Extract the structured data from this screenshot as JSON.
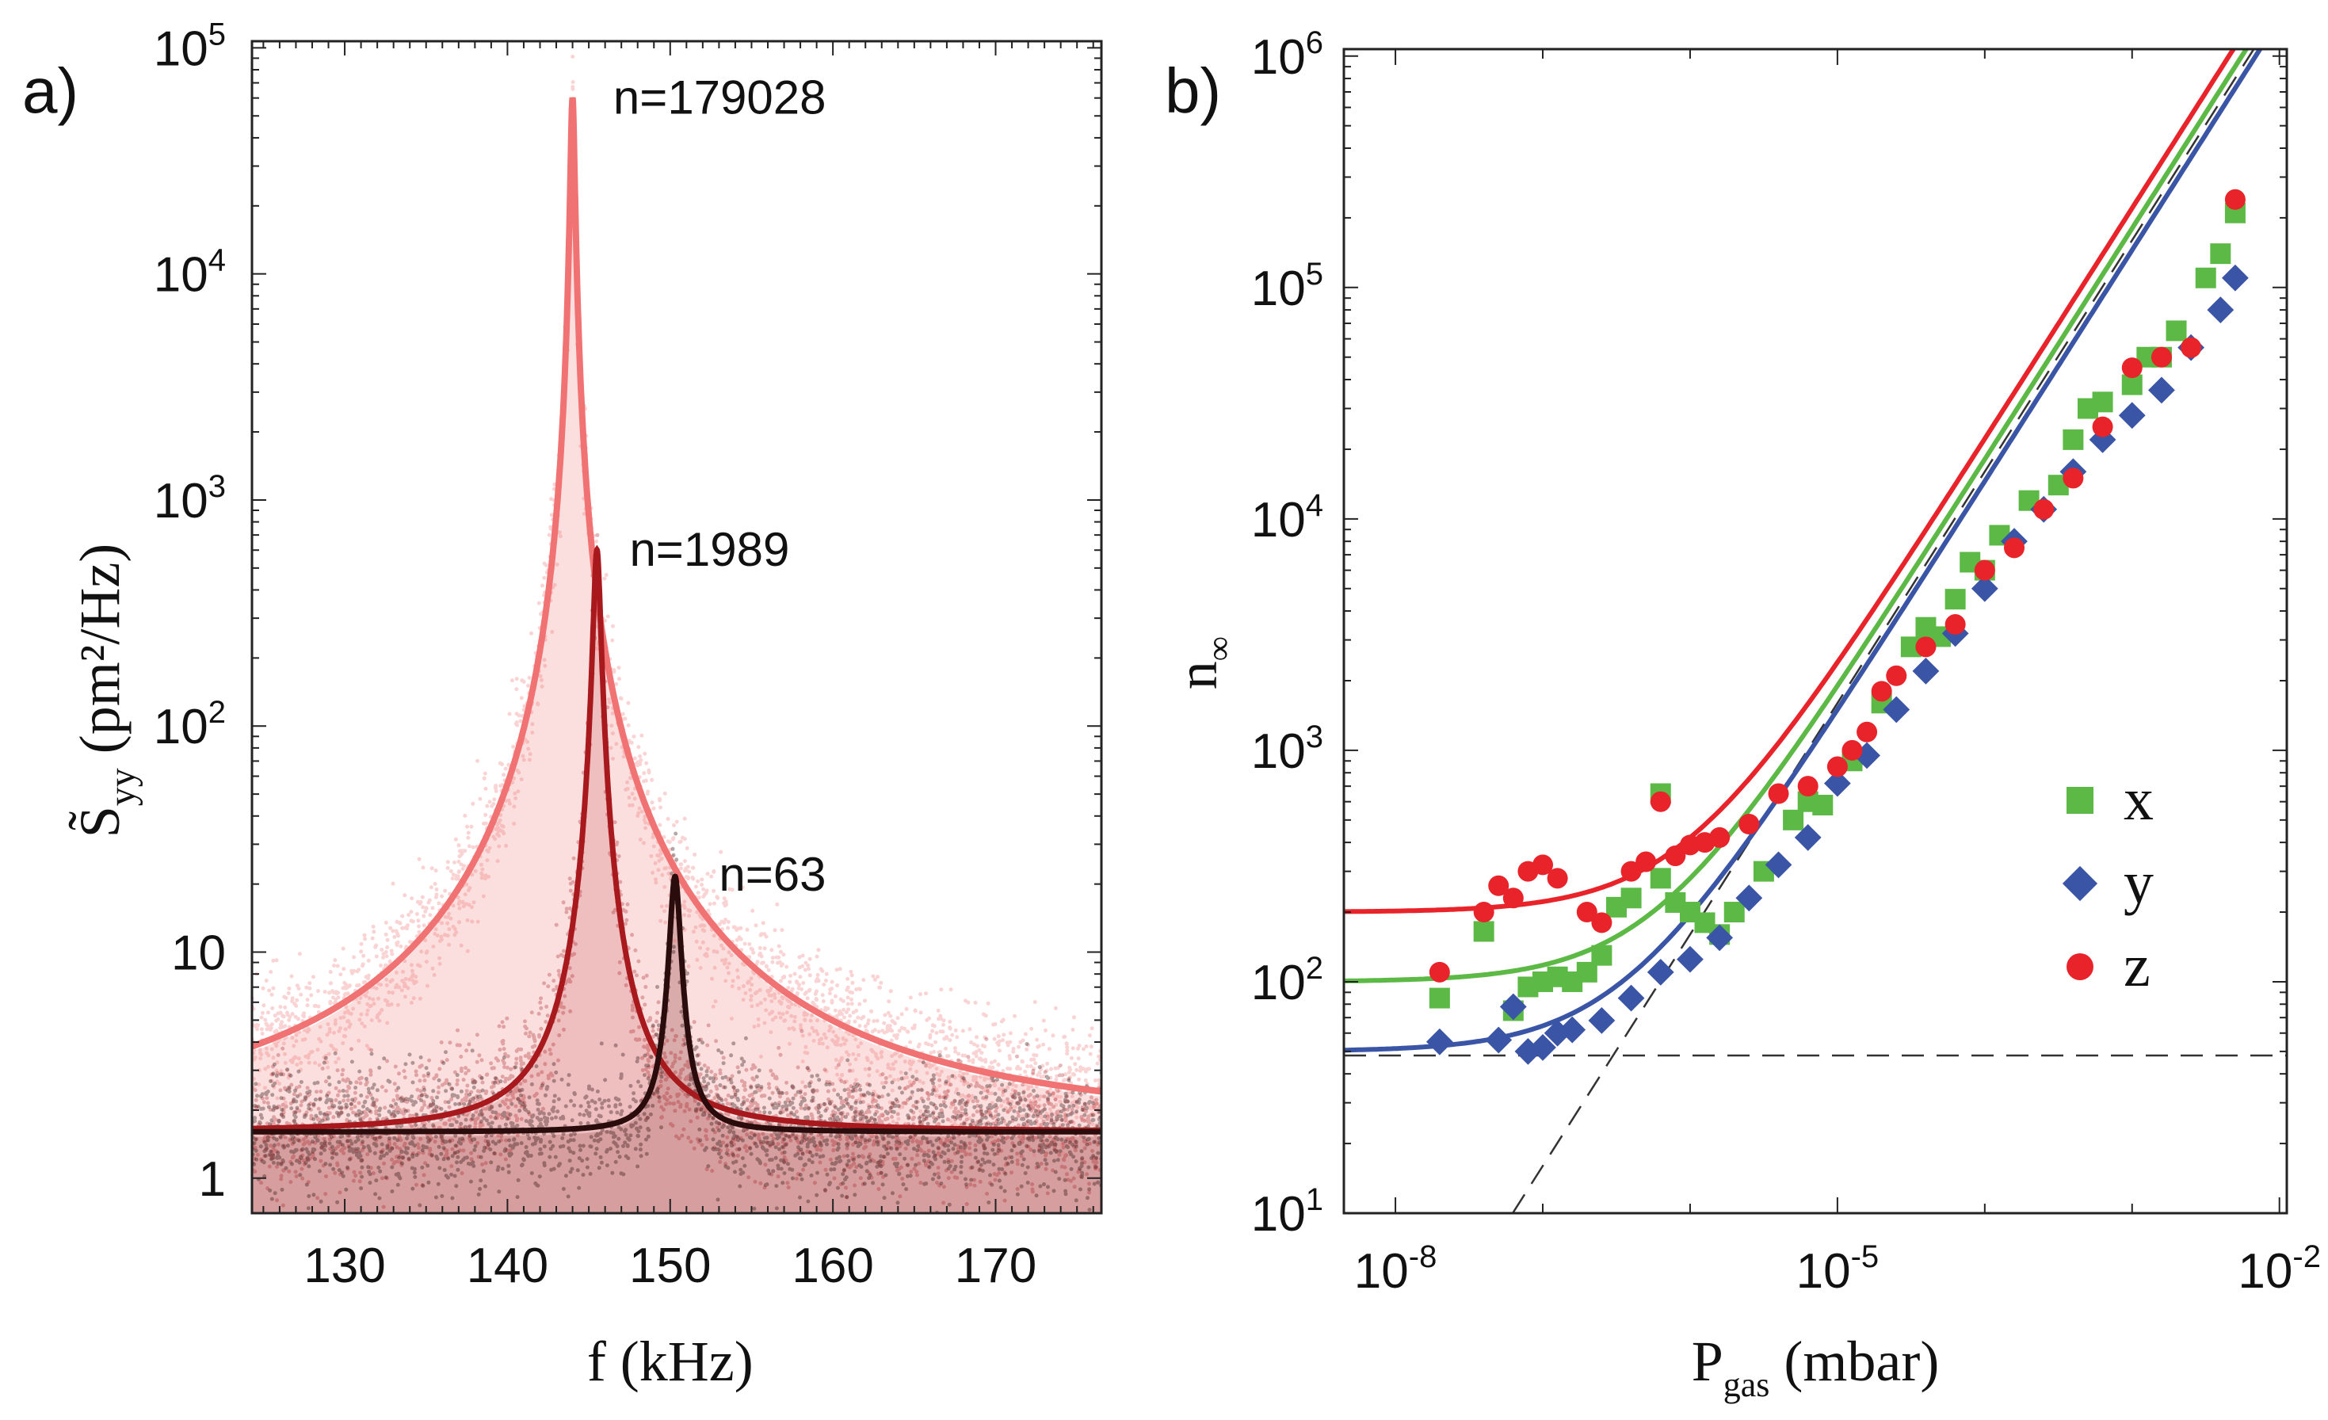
{
  "chart_data": [
    {
      "panel_label": "a)",
      "type": "line",
      "title": "",
      "xlabel": "f (kHz)",
      "ylabel_main": "S",
      "ylabel_sub": "yy",
      "ylabel_unit": "(pm²/Hz)",
      "xscale": "linear",
      "yscale": "log",
      "xlim": [
        124.3,
        176.5
      ],
      "ylim": [
        0.7,
        107000
      ],
      "xticks": [
        130,
        140,
        150,
        160,
        170
      ],
      "xtick_labels": [
        "130",
        "140",
        "150",
        "160",
        "170"
      ],
      "yticks": [
        1,
        10,
        100,
        1000,
        10000,
        100000
      ],
      "ytick_labels": [
        {
          "base": "1",
          "exp": ""
        },
        {
          "base": "10",
          "exp": ""
        },
        {
          "base": "10",
          "exp": "2"
        },
        {
          "base": "10",
          "exp": "3"
        },
        {
          "base": "10",
          "exp": "4"
        },
        {
          "base": "10",
          "exp": "5"
        }
      ],
      "series": [
        {
          "name": "n=179028",
          "center_khz": 144.0,
          "peak": 60000,
          "background": 1.6,
          "half_width_khz": 0.12,
          "color": "#f07272",
          "fill": "#fbdcdc",
          "label_pos": {
            "f": 146.5,
            "S": 60000
          }
        },
        {
          "name": "n=1989",
          "center_khz": 145.5,
          "peak": 600,
          "background": 1.6,
          "half_width_khz": 0.21,
          "color": "#a8191e",
          "fill": "#e8a9a9",
          "label_pos": {
            "f": 147.5,
            "S": 600
          }
        },
        {
          "name": "n=63",
          "center_khz": 150.3,
          "peak": 20,
          "background": 1.6,
          "half_width_khz": 0.32,
          "color": "#2a0c0c",
          "fill": "#c48989",
          "label_pos": {
            "f": 153.0,
            "S": 22
          }
        }
      ]
    },
    {
      "panel_label": "b)",
      "type": "scatter",
      "title": "",
      "xlabel_main": "P",
      "xlabel_sub": "gas",
      "xlabel_unit": "(mbar)",
      "ylabel_main": "n",
      "ylabel_sub": "∞",
      "xscale": "log",
      "yscale": "log",
      "xlim_log10": [
        -8.35,
        -1.95
      ],
      "ylim_log10": [
        1,
        6.03
      ],
      "xticks_log10": [
        -8,
        -5,
        -2
      ],
      "xtick_labels": [
        {
          "base": "10",
          "exp": "-8"
        },
        {
          "base": "10",
          "exp": "-5"
        },
        {
          "base": "10",
          "exp": "-2"
        }
      ],
      "yticks_log10": [
        1,
        2,
        3,
        4,
        5,
        6
      ],
      "ytick_labels": [
        {
          "base": "10",
          "exp": "1"
        },
        {
          "base": "10",
          "exp": "2"
        },
        {
          "base": "10",
          "exp": "3"
        },
        {
          "base": "10",
          "exp": "4"
        },
        {
          "base": "10",
          "exp": "5"
        },
        {
          "base": "10",
          "exp": "6"
        }
      ],
      "legend": {
        "placement": "right-middle",
        "entries": [
          "x",
          "y",
          "z"
        ]
      },
      "reference_lines": {
        "horizontal_n": 48,
        "linear_coefficient": 160000000.0
      },
      "series": [
        {
          "name": "x",
          "marker": "square",
          "color": "#5cb946",
          "fit_n0": 100,
          "fit_k": 180000000.0,
          "points_log10P_n": [
            [
              -7.7,
              85
            ],
            [
              -7.4,
              165
            ],
            [
              -7.2,
              75
            ],
            [
              -7.1,
              95
            ],
            [
              -7.0,
              100
            ],
            [
              -6.9,
              105
            ],
            [
              -6.8,
              100
            ],
            [
              -6.7,
              110
            ],
            [
              -6.6,
              130
            ],
            [
              -6.5,
              210
            ],
            [
              -6.4,
              230
            ],
            [
              -6.2,
              650
            ],
            [
              -6.2,
              280
            ],
            [
              -6.1,
              220
            ],
            [
              -6.0,
              200
            ],
            [
              -5.9,
              180
            ],
            [
              -5.8,
              160
            ],
            [
              -5.7,
              200
            ],
            [
              -5.5,
              300
            ],
            [
              -5.3,
              500
            ],
            [
              -5.2,
              600
            ],
            [
              -5.1,
              580
            ],
            [
              -4.9,
              900
            ],
            [
              -4.7,
              1600
            ],
            [
              -4.5,
              2800
            ],
            [
              -4.4,
              3400
            ],
            [
              -4.3,
              3100
            ],
            [
              -4.2,
              4500
            ],
            [
              -4.1,
              6500
            ],
            [
              -4.0,
              6000
            ],
            [
              -3.9,
              8500
            ],
            [
              -3.7,
              12000
            ],
            [
              -3.5,
              14000
            ],
            [
              -3.4,
              22000
            ],
            [
              -3.3,
              30000
            ],
            [
              -3.2,
              32000
            ],
            [
              -3.0,
              38000
            ],
            [
              -2.9,
              50000
            ],
            [
              -2.8,
              50000
            ],
            [
              -2.7,
              65000
            ],
            [
              -2.5,
              110000
            ],
            [
              -2.4,
              140000
            ],
            [
              -2.3,
              210000
            ]
          ]
        },
        {
          "name": "y",
          "marker": "diamond",
          "color": "#3a55a6",
          "fit_n0": 50,
          "fit_k": 145000000.0,
          "points_log10P_n": [
            [
              -7.7,
              55
            ],
            [
              -7.3,
              56
            ],
            [
              -7.2,
              78
            ],
            [
              -7.1,
              50
            ],
            [
              -7.0,
              52
            ],
            [
              -6.9,
              60
            ],
            [
              -6.8,
              62
            ],
            [
              -6.6,
              68
            ],
            [
              -6.4,
              85
            ],
            [
              -6.2,
              110
            ],
            [
              -6.0,
              125
            ],
            [
              -5.8,
              155
            ],
            [
              -5.6,
              230
            ],
            [
              -5.4,
              320
            ],
            [
              -5.2,
              420
            ],
            [
              -5.0,
              720
            ],
            [
              -4.8,
              950
            ],
            [
              -4.6,
              1500
            ],
            [
              -4.4,
              2200
            ],
            [
              -4.2,
              3200
            ],
            [
              -4.0,
              5000
            ],
            [
              -3.8,
              8000
            ],
            [
              -3.6,
              11000
            ],
            [
              -3.4,
              16000
            ],
            [
              -3.2,
              22000
            ],
            [
              -3.0,
              28000
            ],
            [
              -2.8,
              36000
            ],
            [
              -2.6,
              55000
            ],
            [
              -2.4,
              80000
            ],
            [
              -2.3,
              110000
            ]
          ]
        },
        {
          "name": "z",
          "marker": "circle",
          "color": "#e8232a",
          "fit_n0": 200,
          "fit_k": 220000000.0,
          "points_log10P_n": [
            [
              -7.7,
              110
            ],
            [
              -7.4,
              200
            ],
            [
              -7.3,
              260
            ],
            [
              -7.2,
              230
            ],
            [
              -7.1,
              300
            ],
            [
              -7.0,
              320
            ],
            [
              -6.9,
              280
            ],
            [
              -6.7,
              200
            ],
            [
              -6.6,
              180
            ],
            [
              -6.4,
              300
            ],
            [
              -6.3,
              330
            ],
            [
              -6.2,
              600
            ],
            [
              -6.1,
              350
            ],
            [
              -6.0,
              390
            ],
            [
              -5.9,
              400
            ],
            [
              -5.8,
              420
            ],
            [
              -5.6,
              480
            ],
            [
              -5.4,
              650
            ],
            [
              -5.2,
              700
            ],
            [
              -5.0,
              850
            ],
            [
              -4.9,
              1000
            ],
            [
              -4.8,
              1200
            ],
            [
              -4.7,
              1800
            ],
            [
              -4.6,
              2100
            ],
            [
              -4.4,
              2800
            ],
            [
              -4.2,
              3500
            ],
            [
              -4.0,
              6000
            ],
            [
              -3.8,
              7500
            ],
            [
              -3.6,
              11000
            ],
            [
              -3.4,
              15000
            ],
            [
              -3.2,
              25000
            ],
            [
              -3.0,
              45000
            ],
            [
              -2.8,
              50000
            ],
            [
              -2.6,
              55000
            ],
            [
              -2.3,
              240000
            ]
          ]
        }
      ]
    }
  ]
}
